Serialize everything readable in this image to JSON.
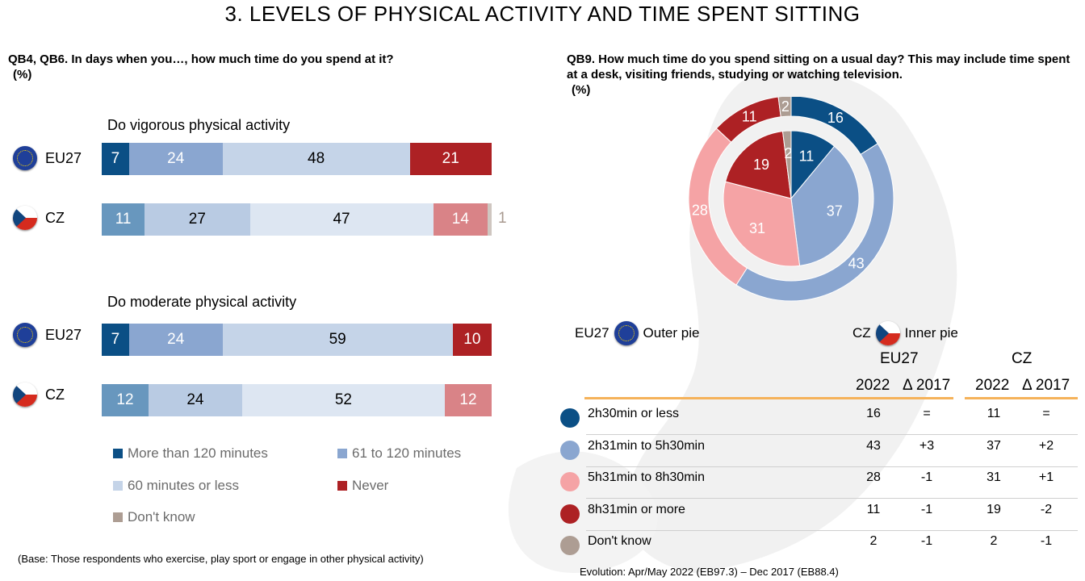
{
  "title": "3. LEVELS OF PHYSICAL ACTIVITY AND TIME SPENT SITTING",
  "left_question": "QB4, QB6. In days when you…, how much time do you spend at it?",
  "left_unit": "(%)",
  "right_question": "QB9. How much time do you spend sitting on a usual day? This may include time spent at a desk, visiting friends, studying or watching television.",
  "right_unit": "(%)",
  "colors": {
    "dark_blue": "#0b4f85",
    "mid_blue": "#8aa6d0",
    "light_blue": "#c5d4e8",
    "red": "#ad2124",
    "taupe": "#ad9d93",
    "cz_dark": "#6897be",
    "cz_mid": "#b9cbe3",
    "cz_light": "#dde6f2",
    "cz_red": "#d98387",
    "pink": "#f5a3a5"
  },
  "chart_data": [
    {
      "type": "bar",
      "orientation": "horizontal-stacked",
      "title": "Do vigorous physical activity",
      "categories": [
        "EU27",
        "CZ"
      ],
      "series": [
        {
          "name": "More than 120 minutes",
          "values": [
            7,
            11
          ]
        },
        {
          "name": "61 to 120 minutes",
          "values": [
            24,
            27
          ]
        },
        {
          "name": "60 minutes or less",
          "values": [
            48,
            47
          ]
        },
        {
          "name": "Never",
          "values": [
            21,
            14
          ]
        },
        {
          "name": "Don't know",
          "values": [
            null,
            1
          ]
        }
      ]
    },
    {
      "type": "bar",
      "orientation": "horizontal-stacked",
      "title": "Do moderate physical activity",
      "categories": [
        "EU27",
        "CZ"
      ],
      "series": [
        {
          "name": "More than 120 minutes",
          "values": [
            7,
            12
          ]
        },
        {
          "name": "61 to 120 minutes",
          "values": [
            24,
            24
          ]
        },
        {
          "name": "60 minutes or less",
          "values": [
            59,
            52
          ]
        },
        {
          "name": "Never",
          "values": [
            10,
            12
          ]
        },
        {
          "name": "Don't know",
          "values": [
            null,
            null
          ]
        }
      ]
    },
    {
      "type": "pie",
      "variant": "double-donut",
      "categories": [
        "2h30min or less",
        "2h31min to 5h30min",
        "5h31min to 8h30min",
        "8h31min or more",
        "Don't know"
      ],
      "series": [
        {
          "name": "EU27",
          "values": [
            16,
            43,
            28,
            11,
            2
          ]
        },
        {
          "name": "CZ",
          "values": [
            11,
            37,
            31,
            19,
            2
          ]
        }
      ]
    },
    {
      "type": "table",
      "group_headers": [
        "EU27",
        "CZ"
      ],
      "columns": [
        "2022",
        "Δ 2017",
        "2022",
        "Δ 2017"
      ],
      "rows": [
        {
          "label": "2h30min or less",
          "values": [
            "16",
            "=",
            "11",
            "="
          ]
        },
        {
          "label": "2h31min to 5h30min",
          "values": [
            "43",
            "+3",
            "37",
            "+2"
          ]
        },
        {
          "label": "5h31min to 8h30min",
          "values": [
            "28",
            "-1",
            "31",
            "+1"
          ]
        },
        {
          "label": "8h31min or more",
          "values": [
            "11",
            "-1",
            "19",
            "-2"
          ]
        },
        {
          "label": "Don't know",
          "values": [
            "2",
            "-1",
            "2",
            "-1"
          ]
        }
      ]
    }
  ],
  "left_legend": [
    "More than 120 minutes",
    "61 to 120 minutes",
    "60 minutes or less",
    "Never",
    "Don't know"
  ],
  "pie_legend": {
    "eu_label": "EU27",
    "eu_text": "Outer pie",
    "cz_label": "CZ",
    "cz_text": "Inner pie"
  },
  "base_note": "(Base: Those respondents who exercise, play sport or engage in other physical activity)",
  "evolution_note": "Evolution: Apr/May 2022 (EB97.3) – Dec 2017 (EB88.4)"
}
